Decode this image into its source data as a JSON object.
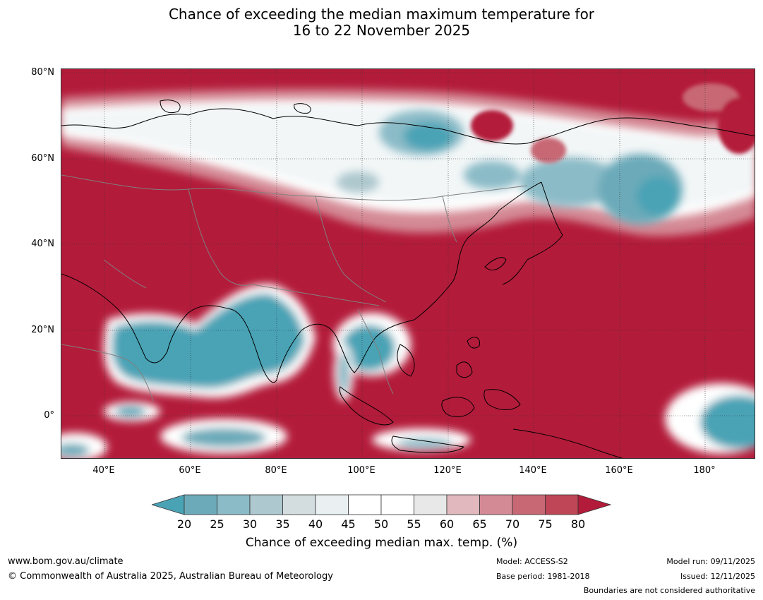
{
  "title": {
    "line1": "Chance of exceeding the median maximum temperature for",
    "line2": "16 to 22 November 2025"
  },
  "map": {
    "lat_labels": [
      "80°N",
      "60°N",
      "40°N",
      "20°N",
      "0°"
    ],
    "lon_labels": [
      "40°E",
      "60°E",
      "80°E",
      "100°E",
      "120°E",
      "140°E",
      "160°E",
      "180°"
    ],
    "colors": {
      "low": "#4aa3b5",
      "neutral": "#ffffff",
      "high": "#b31b3a",
      "coast": "#000000",
      "border": "#808080"
    }
  },
  "colorbar": {
    "ticks": [
      "20",
      "25",
      "30",
      "35",
      "40",
      "45",
      "50",
      "55",
      "60",
      "65",
      "70",
      "75",
      "80"
    ],
    "colors": [
      "#4aa3b5",
      "#6caab9",
      "#8bbbc7",
      "#adc8ce",
      "#d3dcde",
      "#eaf0f2",
      "#ffffff",
      "#ffffff",
      "#e8e8e8",
      "#e0b8bd",
      "#d48a95",
      "#c86874",
      "#bf4656",
      "#b31b3a"
    ],
    "label": "Chance of exceeding median max. temp. (%)"
  },
  "footer": {
    "website": "www.bom.gov.au/climate",
    "copyright": "© Commonwealth of Australia 2025, Australian Bureau of Meteorology",
    "model": "Model: ACCESS-S2",
    "base_period": "Base period: 1981-2018",
    "model_run": "Model run: 09/11/2025",
    "issued": "Issued: 12/11/2025",
    "boundaries": "Boundaries are not considered authoritative"
  }
}
